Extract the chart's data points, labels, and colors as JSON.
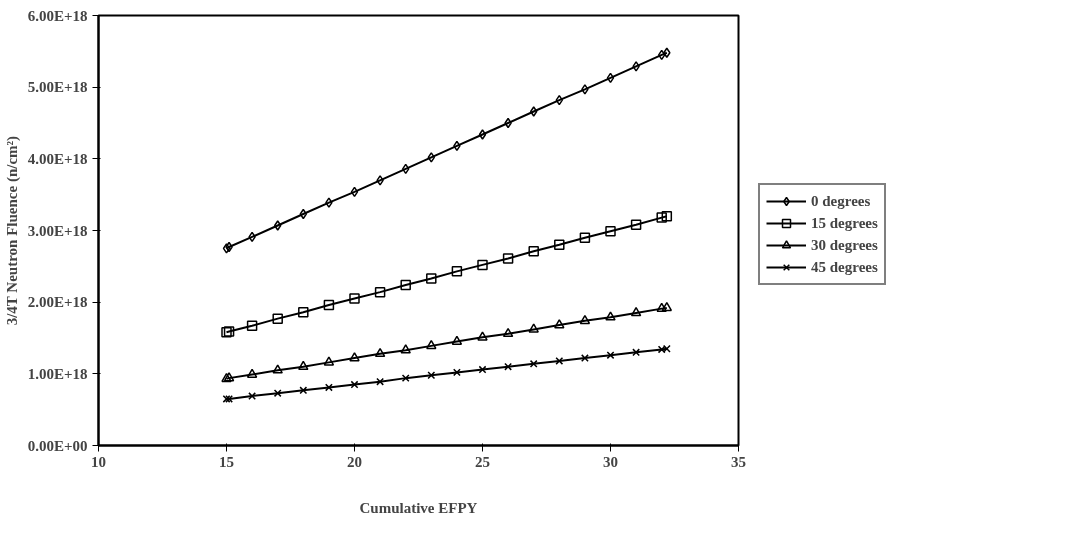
{
  "chart_data": {
    "type": "line",
    "xlabel": "Cumulative EFPY",
    "ylabel": "3/4T Neutron Fluence (n/cm²)",
    "x": [
      15,
      15.1,
      16,
      17,
      18,
      19,
      20,
      21,
      22,
      23,
      24,
      25,
      26,
      27,
      28,
      29,
      30,
      31,
      32,
      32.2
    ],
    "series": [
      {
        "name": "0 degrees",
        "color": "#000000",
        "marker": "diamond",
        "values": [
          2.75e+18,
          2.77e+18,
          2.91e+18,
          3.07e+18,
          3.23e+18,
          3.39e+18,
          3.54e+18,
          3.7e+18,
          3.86e+18,
          4.02e+18,
          4.18e+18,
          4.34e+18,
          4.5e+18,
          4.66e+18,
          4.82e+18,
          4.97e+18,
          5.13e+18,
          5.29e+18,
          5.45e+18,
          5.48e+18
        ]
      },
      {
        "name": "15 degrees",
        "color": "#000000",
        "marker": "square",
        "values": [
          1.58e+18,
          1.59e+18,
          1.67e+18,
          1.77e+18,
          1.86e+18,
          1.96e+18,
          2.05e+18,
          2.14e+18,
          2.24e+18,
          2.33e+18,
          2.43e+18,
          2.52e+18,
          2.61e+18,
          2.71e+18,
          2.8e+18,
          2.9e+18,
          2.99e+18,
          3.08e+18,
          3.18e+18,
          3.2e+18
        ]
      },
      {
        "name": "30 degrees",
        "color": "#000000",
        "marker": "triangle",
        "values": [
          9.3e+17,
          9.4e+17,
          9.9e+17,
          1.05e+18,
          1.1e+18,
          1.16e+18,
          1.22e+18,
          1.28e+18,
          1.33e+18,
          1.39e+18,
          1.45e+18,
          1.51e+18,
          1.56e+18,
          1.62e+18,
          1.68e+18,
          1.74e+18,
          1.79e+18,
          1.85e+18,
          1.91e+18,
          1.92e+18
        ]
      },
      {
        "name": "45 degrees",
        "color": "#000000",
        "marker": "cross",
        "values": [
          6.5e+17,
          6.5e+17,
          6.9e+17,
          7.3e+17,
          7.7e+17,
          8.1e+17,
          8.5e+17,
          8.9e+17,
          9.4e+17,
          9.8e+17,
          1.02e+18,
          1.06e+18,
          1.1e+18,
          1.14e+18,
          1.18e+18,
          1.22e+18,
          1.26e+18,
          1.3e+18,
          1.34e+18,
          1.35e+18
        ]
      }
    ],
    "xlim": [
      10,
      35
    ],
    "xticks": [
      10,
      15,
      20,
      25,
      30,
      35
    ],
    "ylim": [
      0,
      6e+18
    ],
    "yticks": [
      {
        "value": 0,
        "label": "0.00E+00"
      },
      {
        "value": 1e+18,
        "label": "1.00E+18"
      },
      {
        "value": 2e+18,
        "label": "2.00E+18"
      },
      {
        "value": 3e+18,
        "label": "3.00E+18"
      },
      {
        "value": 4e+18,
        "label": "4.00E+18"
      },
      {
        "value": 5e+18,
        "label": "5.00E+18"
      },
      {
        "value": 6e+18,
        "label": "6.00E+18"
      }
    ],
    "grid": false,
    "legend": "right",
    "line_style": "solid"
  }
}
